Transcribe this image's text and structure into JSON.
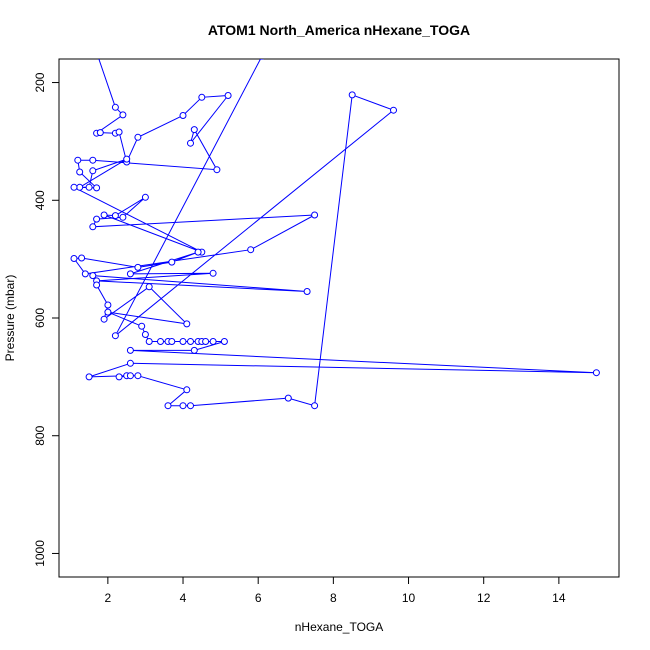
{
  "chart_data": {
    "type": "line",
    "title": "ATOM1 North_America nHexane_TOGA",
    "xlabel": "nHexane_TOGA",
    "ylabel": "Pressure (mbar)",
    "xlim": [
      0.7,
      15.6
    ],
    "ylim": [
      1040,
      160
    ],
    "y_reversed": true,
    "x_ticks": [
      2,
      4,
      6,
      8,
      10,
      12,
      14
    ],
    "x_tick_labels": [
      "2",
      "4",
      "6",
      "8",
      "10",
      "12",
      "14"
    ],
    "y_ticks": [
      200,
      400,
      600,
      800,
      1000
    ],
    "y_tick_labels": [
      "200",
      "400",
      "600",
      "800",
      "1000"
    ],
    "grid": false,
    "color": "#0000ff",
    "x": [
      1.6,
      2.2,
      2.4,
      1.7,
      1.8,
      2.2,
      2.3,
      2.5,
      2.8,
      4.0,
      4.5,
      5.2,
      4.2,
      4.3,
      4.9,
      1.6,
      1.2,
      1.25,
      1.7,
      1.25,
      2.5,
      1.6,
      1.5,
      1.1,
      4.5,
      1.9,
      2.2,
      3.0,
      2.4,
      1.7,
      1.6,
      7.5,
      5.8,
      1.4,
      1.1,
      1.3,
      2.8,
      3.7,
      4.4,
      2.6,
      4.8,
      1.7,
      7.3,
      1.6,
      1.7,
      2.0,
      1.9,
      3.1,
      4.1,
      2.0,
      2.9,
      3.0,
      3.1,
      3.4,
      3.6,
      3.7,
      4.0,
      4.2,
      4.4,
      4.5,
      4.6,
      4.8,
      5.1,
      4.3,
      2.6,
      15.0,
      2.6,
      1.5,
      2.5,
      2.3,
      2.6,
      2.8,
      4.1,
      3.6,
      4.0,
      4.2,
      6.8,
      7.5,
      8.5,
      9.6,
      2.2,
      6.1
    ],
    "y": [
      130,
      242,
      255,
      286,
      285,
      286,
      284,
      335,
      293,
      256,
      225,
      222,
      303,
      280,
      348,
      332,
      332,
      352,
      379,
      378,
      330,
      350,
      378,
      378,
      488,
      425,
      426,
      395,
      429,
      432,
      445,
      425,
      484,
      525,
      499,
      498,
      514,
      505,
      488,
      525,
      524,
      537,
      555,
      528,
      544,
      578,
      602,
      547,
      610,
      590,
      614,
      628,
      640,
      640,
      640,
      640,
      640,
      640,
      640,
      640,
      640,
      640,
      640,
      655,
      655,
      693,
      677,
      700,
      698,
      700,
      698,
      698,
      722,
      749,
      749,
      749,
      736,
      749,
      221,
      247,
      630,
      155
    ]
  }
}
